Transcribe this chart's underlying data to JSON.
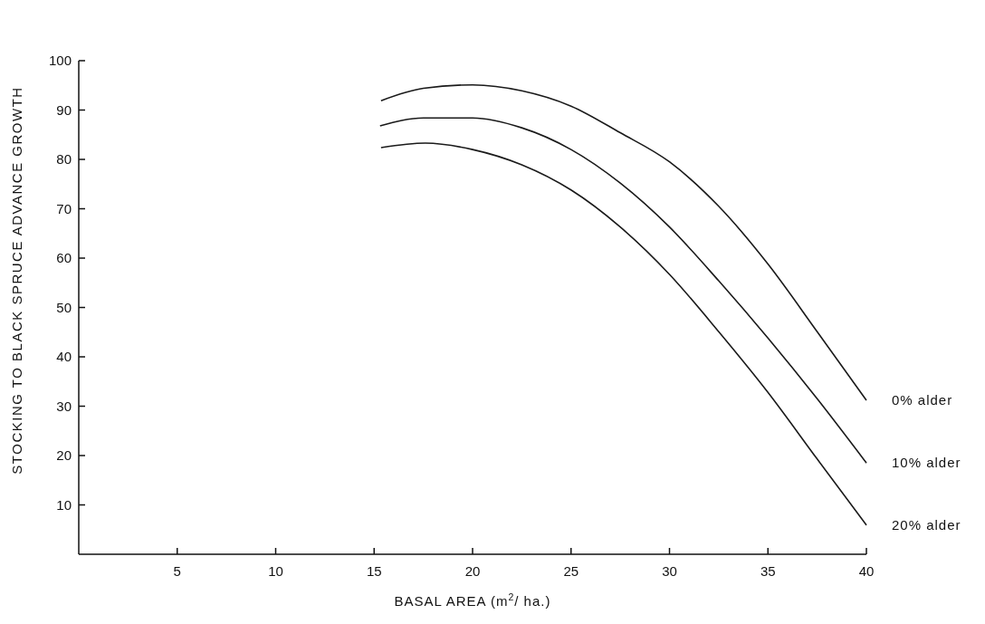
{
  "chart_data": {
    "type": "line",
    "xlabel": "BASAL AREA (m$^{2}$/ ha.)",
    "ylabel": "STOCKING TO BLACK SPRUCE ADVANCE GROWTH",
    "xlim": [
      0,
      40
    ],
    "xticks": [
      5,
      10,
      15,
      20,
      25,
      30,
      35,
      40
    ],
    "ylim": [
      0,
      100
    ],
    "yticks": [
      10,
      20,
      30,
      40,
      50,
      60,
      70,
      80,
      90,
      100
    ],
    "grid": false,
    "legend": false,
    "marker": "none",
    "line_style": "solid",
    "series": [
      {
        "name": "0% alder",
        "color": "#1a1a1a",
        "x": [
          15.35,
          17.5,
          20,
          22.5,
          25,
          27.5,
          30,
          32.5,
          35,
          37.5,
          40
        ],
        "values": [
          91.9,
          94.4,
          95.1,
          93.9,
          90.8,
          85.4,
          79.5,
          70.5,
          58.8,
          45.1,
          31.2
        ]
      },
      {
        "name": "10% alder",
        "color": "#1a1a1a",
        "x": [
          15.3,
          17.5,
          20,
          22.5,
          25,
          27.5,
          30,
          32.5,
          35,
          37.5,
          40
        ],
        "values": [
          86.8,
          88.4,
          88.4,
          86.4,
          82.0,
          75.2,
          66.3,
          55.4,
          43.8,
          31.5,
          18.5
        ]
      },
      {
        "name": "20% alder",
        "color": "#1a1a1a",
        "x": [
          15.35,
          17.6,
          20,
          22.5,
          25,
          27.5,
          30,
          32.5,
          35,
          37.5,
          40
        ],
        "values": [
          82.4,
          83.3,
          82.0,
          78.9,
          73.8,
          66.3,
          56.7,
          45.1,
          32.8,
          19.3,
          5.9
        ]
      }
    ]
  }
}
